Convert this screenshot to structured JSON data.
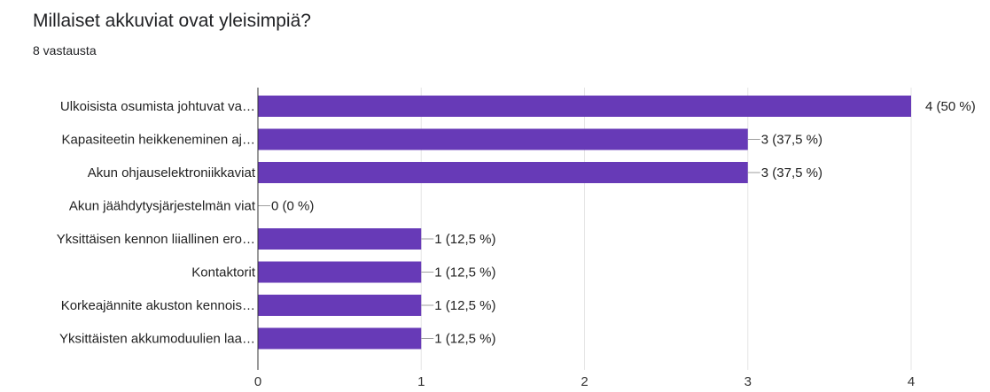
{
  "question": {
    "title": "Millaiset akkuviat ovat yleisimpiä?",
    "response_count": "8 vastausta"
  },
  "colors": {
    "bar": "#673ab7",
    "grid": "#e6e6e6",
    "axis": "#333333",
    "leader": "#9e9e9e"
  },
  "chart_data": {
    "type": "bar",
    "orientation": "horizontal",
    "categories": [
      "Ulkoisista osumista johtuvat va…",
      "Kapasiteetin heikkeneminen aj…",
      "Akun ohjauselektroniikkaviat",
      "Akun jäähdytysjärjestelmän viat",
      "Yksittäisen kennon liiallinen ero…",
      "Kontaktorit",
      "Korkeajännite akuston kennois…",
      "Yksittäisten akkumoduulien laa…"
    ],
    "values": [
      4,
      3,
      3,
      0,
      1,
      1,
      1,
      1
    ],
    "value_labels": [
      "4 (50 %)",
      "3 (37,5 %)",
      "3 (37,5 %)",
      "0 (0 %)",
      "1 (12,5 %)",
      "1 (12,5 %)",
      "1 (12,5 %)",
      "1 (12,5 %)"
    ],
    "xlim": [
      0,
      4
    ],
    "x_ticks": [
      "0",
      "1",
      "2",
      "3",
      "4"
    ],
    "grid": true,
    "legend": "none"
  }
}
